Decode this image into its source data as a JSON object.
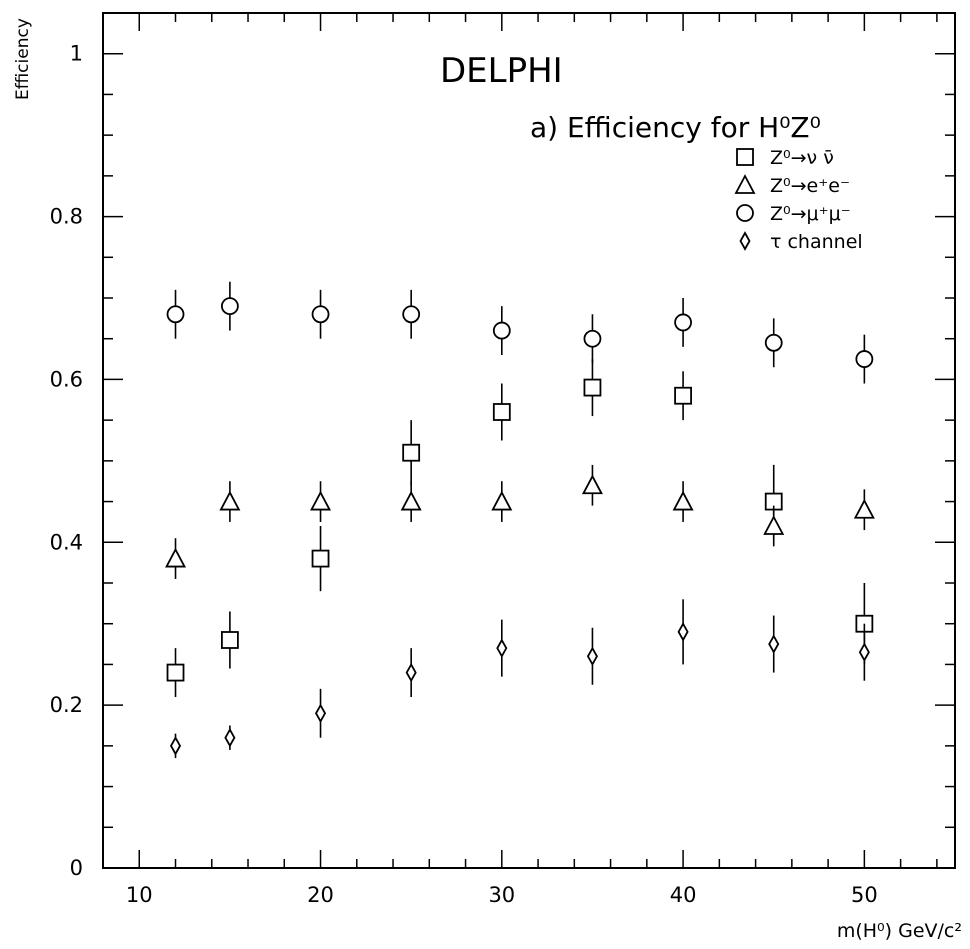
{
  "chart_data": {
    "type": "scatter",
    "title": "DELPHI",
    "subtitle": "a) Efficiency for H⁰Z⁰",
    "xlabel": "m(H⁰) GeV/c²",
    "ylabel": "Efficiency",
    "xlim": [
      8,
      55
    ],
    "ylim": [
      0,
      1.05
    ],
    "x_ticks": [
      10,
      20,
      30,
      40,
      50
    ],
    "x_tick_labels": [
      "10",
      "20",
      "30",
      "40",
      "50"
    ],
    "y_ticks": [
      0,
      0.2,
      0.4,
      0.6,
      0.8,
      1
    ],
    "y_tick_labels": [
      "0",
      "0.2",
      "0.4",
      "0.6",
      "0.8",
      "1"
    ],
    "grid": false,
    "legend_position": "top-right",
    "series": [
      {
        "name": "Z⁰→ν ν̄",
        "marker": "square",
        "points": [
          {
            "x": 12,
            "y": 0.24,
            "err": 0.03
          },
          {
            "x": 15,
            "y": 0.28,
            "err": 0.035
          },
          {
            "x": 20,
            "y": 0.38,
            "err": 0.04
          },
          {
            "x": 25,
            "y": 0.51,
            "err": 0.04
          },
          {
            "x": 30,
            "y": 0.56,
            "err": 0.035
          },
          {
            "x": 35,
            "y": 0.59,
            "err": 0.035
          },
          {
            "x": 40,
            "y": 0.58,
            "err": 0.03
          },
          {
            "x": 45,
            "y": 0.45,
            "err": 0.045
          },
          {
            "x": 50,
            "y": 0.3,
            "err": 0.05
          }
        ]
      },
      {
        "name": "Z⁰→e⁺e⁻",
        "marker": "triangle",
        "points": [
          {
            "x": 12,
            "y": 0.38,
            "err": 0.025
          },
          {
            "x": 15,
            "y": 0.45,
            "err": 0.025
          },
          {
            "x": 20,
            "y": 0.45,
            "err": 0.025
          },
          {
            "x": 25,
            "y": 0.45,
            "err": 0.025
          },
          {
            "x": 30,
            "y": 0.45,
            "err": 0.025
          },
          {
            "x": 35,
            "y": 0.47,
            "err": 0.025
          },
          {
            "x": 40,
            "y": 0.45,
            "err": 0.025
          },
          {
            "x": 45,
            "y": 0.42,
            "err": 0.025
          },
          {
            "x": 50,
            "y": 0.44,
            "err": 0.025
          }
        ]
      },
      {
        "name": "Z⁰→μ⁺μ⁻",
        "marker": "circle",
        "points": [
          {
            "x": 12,
            "y": 0.68,
            "err": 0.03
          },
          {
            "x": 15,
            "y": 0.69,
            "err": 0.03
          },
          {
            "x": 20,
            "y": 0.68,
            "err": 0.03
          },
          {
            "x": 25,
            "y": 0.68,
            "err": 0.03
          },
          {
            "x": 30,
            "y": 0.66,
            "err": 0.03
          },
          {
            "x": 35,
            "y": 0.65,
            "err": 0.03
          },
          {
            "x": 40,
            "y": 0.67,
            "err": 0.03
          },
          {
            "x": 45,
            "y": 0.645,
            "err": 0.03
          },
          {
            "x": 50,
            "y": 0.625,
            "err": 0.03
          }
        ]
      },
      {
        "name": "τ channel",
        "marker": "diamond",
        "points": [
          {
            "x": 12,
            "y": 0.15,
            "err": 0.015
          },
          {
            "x": 15,
            "y": 0.16,
            "err": 0.015
          },
          {
            "x": 20,
            "y": 0.19,
            "err": 0.03
          },
          {
            "x": 25,
            "y": 0.24,
            "err": 0.03
          },
          {
            "x": 30,
            "y": 0.27,
            "err": 0.035
          },
          {
            "x": 35,
            "y": 0.26,
            "err": 0.035
          },
          {
            "x": 40,
            "y": 0.29,
            "err": 0.04
          },
          {
            "x": 45,
            "y": 0.275,
            "err": 0.035
          },
          {
            "x": 50,
            "y": 0.265,
            "err": 0.035
          }
        ]
      }
    ]
  }
}
